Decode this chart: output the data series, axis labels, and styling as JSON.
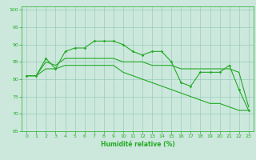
{
  "xlabel": "Humidité relative (%)",
  "background_color": "#cce8dd",
  "grid_color": "#99ccbb",
  "line_color": "#22aa22",
  "xlim": [
    -0.5,
    23.5
  ],
  "ylim": [
    65,
    101
  ],
  "yticks": [
    65,
    70,
    75,
    80,
    85,
    90,
    95,
    100
  ],
  "xticks": [
    0,
    1,
    2,
    3,
    4,
    5,
    6,
    7,
    8,
    9,
    10,
    11,
    12,
    13,
    14,
    15,
    16,
    17,
    18,
    19,
    20,
    21,
    22,
    23
  ],
  "line1_x": [
    0,
    1,
    2,
    3,
    4,
    5,
    6,
    7,
    8,
    9,
    10,
    11,
    12,
    13,
    14,
    15,
    16,
    17,
    18,
    19,
    20,
    21,
    22,
    23
  ],
  "line1_y": [
    81,
    81,
    86,
    83,
    88,
    89,
    89,
    91,
    91,
    91,
    90,
    88,
    87,
    88,
    88,
    85,
    79,
    78,
    82,
    82,
    82,
    84,
    77,
    71
  ],
  "line2_x": [
    0,
    1,
    2,
    3,
    4,
    5,
    6,
    7,
    8,
    9,
    10,
    11,
    12,
    13,
    14,
    15,
    16,
    17,
    18,
    19,
    20,
    21,
    22,
    23
  ],
  "line2_y": [
    81,
    81,
    85,
    84,
    86,
    86,
    86,
    86,
    86,
    86,
    85,
    85,
    85,
    84,
    84,
    84,
    83,
    83,
    83,
    83,
    83,
    83,
    82,
    72
  ],
  "line3_x": [
    0,
    1,
    2,
    3,
    4,
    5,
    6,
    7,
    8,
    9,
    10,
    11,
    12,
    13,
    14,
    15,
    16,
    17,
    18,
    19,
    20,
    21,
    22,
    23
  ],
  "line3_y": [
    81,
    81,
    83,
    83,
    84,
    84,
    84,
    84,
    84,
    84,
    82,
    81,
    80,
    79,
    78,
    77,
    76,
    75,
    74,
    73,
    73,
    72,
    71,
    71
  ]
}
